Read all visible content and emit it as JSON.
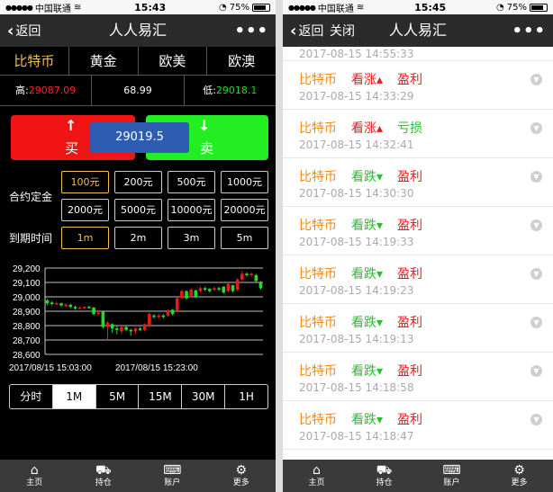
{
  "left": {
    "status": {
      "carrier": "中国联通",
      "time": "15:43",
      "battery": "75%"
    },
    "nav": {
      "back_label": "返回",
      "title": "人人易汇",
      "more": "•••"
    },
    "categories": [
      {
        "label": "比特币",
        "active": true
      },
      {
        "label": "黄金",
        "active": false
      },
      {
        "label": "欧美",
        "active": false
      },
      {
        "label": "欧澳",
        "active": false
      }
    ],
    "prices": {
      "high_label": "高:",
      "high_value": "29087.09",
      "change": "68.99",
      "low_label": "低:",
      "low_value": "29018.1"
    },
    "trade": {
      "buy_label": "买",
      "sell_label": "卖",
      "current_price": "29019.5"
    },
    "deposit": {
      "label": "合约定金",
      "options": [
        "100元",
        "200元",
        "500元",
        "1000元",
        "2000元",
        "5000元",
        "10000元",
        "20000元"
      ],
      "selected": "100元"
    },
    "expiry": {
      "label": "到期时间",
      "options": [
        "1m",
        "2m",
        "3m",
        "5m"
      ],
      "selected": "1m"
    },
    "periods": {
      "options": [
        "分时",
        "1M",
        "5M",
        "15M",
        "30M",
        "1H"
      ],
      "selected": "1M"
    },
    "tabbar": [
      {
        "label": "主页",
        "icon": "home-icon"
      },
      {
        "label": "持仓",
        "icon": "cart-icon"
      },
      {
        "label": "账户",
        "icon": "inbox-icon"
      },
      {
        "label": "更多",
        "icon": "gear-icon"
      }
    ]
  },
  "chart_data": {
    "type": "candlestick",
    "y_ticks": [
      "29,200",
      "29,100",
      "29,000",
      "28,900",
      "28,800",
      "28,700",
      "28,600"
    ],
    "ylim": [
      28600,
      29200
    ],
    "x_ticks": [
      "2017/08/15 15:03:00",
      "2017/08/15 15:23:00"
    ],
    "candles": [
      {
        "o": 28975,
        "c": 28955,
        "h": 28985,
        "l": 28940
      },
      {
        "o": 28960,
        "c": 28950,
        "h": 28970,
        "l": 28940
      },
      {
        "o": 28950,
        "c": 28955,
        "h": 28965,
        "l": 28945
      },
      {
        "o": 28955,
        "c": 28940,
        "h": 28960,
        "l": 28930
      },
      {
        "o": 28940,
        "c": 28945,
        "h": 28955,
        "l": 28930
      },
      {
        "o": 28945,
        "c": 28930,
        "h": 28950,
        "l": 28920
      },
      {
        "o": 28930,
        "c": 28920,
        "h": 28940,
        "l": 28910
      },
      {
        "o": 28920,
        "c": 28925,
        "h": 28935,
        "l": 28915
      },
      {
        "o": 28925,
        "c": 28930,
        "h": 28935,
        "l": 28915
      },
      {
        "o": 28930,
        "c": 28925,
        "h": 28940,
        "l": 28920
      },
      {
        "o": 28925,
        "c": 28880,
        "h": 28930,
        "l": 28870
      },
      {
        "o": 28880,
        "c": 28890,
        "h": 28900,
        "l": 28870
      },
      {
        "o": 28900,
        "c": 28790,
        "h": 28905,
        "l": 28780
      },
      {
        "o": 28790,
        "c": 28820,
        "h": 28830,
        "l": 28700
      },
      {
        "o": 28810,
        "c": 28780,
        "h": 28815,
        "l": 28750
      },
      {
        "o": 28780,
        "c": 28770,
        "h": 28795,
        "l": 28740
      },
      {
        "o": 28760,
        "c": 28790,
        "h": 28800,
        "l": 28740
      },
      {
        "o": 28790,
        "c": 28770,
        "h": 28800,
        "l": 28760
      },
      {
        "o": 28770,
        "c": 28760,
        "h": 28780,
        "l": 28730
      },
      {
        "o": 28760,
        "c": 28780,
        "h": 28790,
        "l": 28740
      },
      {
        "o": 28780,
        "c": 28770,
        "h": 28790,
        "l": 28760
      },
      {
        "o": 28770,
        "c": 28810,
        "h": 28815,
        "l": 28760
      },
      {
        "o": 28800,
        "c": 28880,
        "h": 28890,
        "l": 28790
      },
      {
        "o": 28870,
        "c": 28860,
        "h": 28880,
        "l": 28850
      },
      {
        "o": 28860,
        "c": 28870,
        "h": 28880,
        "l": 28850
      },
      {
        "o": 28870,
        "c": 28860,
        "h": 28880,
        "l": 28850
      },
      {
        "o": 28870,
        "c": 28900,
        "h": 28910,
        "l": 28860
      },
      {
        "o": 28910,
        "c": 28880,
        "h": 28915,
        "l": 28870
      },
      {
        "o": 28900,
        "c": 28990,
        "h": 28995,
        "l": 28890
      },
      {
        "o": 28990,
        "c": 29040,
        "h": 29050,
        "l": 28985
      },
      {
        "o": 29040,
        "c": 28990,
        "h": 29045,
        "l": 28980
      },
      {
        "o": 29000,
        "c": 29050,
        "h": 29060,
        "l": 28995
      },
      {
        "o": 29045,
        "c": 29000,
        "h": 29050,
        "l": 28990
      },
      {
        "o": 29040,
        "c": 29060,
        "h": 29070,
        "l": 29030
      },
      {
        "o": 29060,
        "c": 29050,
        "h": 29070,
        "l": 29040
      },
      {
        "o": 29055,
        "c": 29040,
        "h": 29060,
        "l": 29030
      },
      {
        "o": 29050,
        "c": 29060,
        "h": 29070,
        "l": 29040
      },
      {
        "o": 29060,
        "c": 29050,
        "h": 29070,
        "l": 29040
      },
      {
        "o": 29070,
        "c": 29030,
        "h": 29075,
        "l": 29020
      },
      {
        "o": 29040,
        "c": 29090,
        "h": 29100,
        "l": 29030
      },
      {
        "o": 29080,
        "c": 29040,
        "h": 29085,
        "l": 29030
      },
      {
        "o": 29050,
        "c": 29120,
        "h": 29130,
        "l": 29040
      },
      {
        "o": 29120,
        "c": 29160,
        "h": 29180,
        "l": 29110
      },
      {
        "o": 29160,
        "c": 29150,
        "h": 29170,
        "l": 29140
      },
      {
        "o": 29150,
        "c": 29160,
        "h": 29170,
        "l": 29140
      },
      {
        "o": 29150,
        "c": 29110,
        "h": 29160,
        "l": 29100
      },
      {
        "o": 29100,
        "c": 29060,
        "h": 29110,
        "l": 29050
      }
    ],
    "colors": {
      "up": "#e81b1b",
      "down": "#22dd22",
      "grid": "#ffffff"
    }
  },
  "right": {
    "status": {
      "carrier": "中国联通",
      "time": "15:45",
      "battery": "75%"
    },
    "nav": {
      "back_label": "返回",
      "close_label": "关闭",
      "title": "人人易汇",
      "more": "•••"
    },
    "top_timestamp": "2017-08-15 14:55:33",
    "orders": [
      {
        "symbol": "比特币",
        "direction": "看涨",
        "dir_type": "up",
        "result": "盈利",
        "result_type": "profit",
        "time": "2017-08-15 14:33:29"
      },
      {
        "symbol": "比特币",
        "direction": "看涨",
        "dir_type": "up",
        "result": "亏损",
        "result_type": "loss",
        "time": "2017-08-15 14:32:41"
      },
      {
        "symbol": "比特币",
        "direction": "看跌",
        "dir_type": "down",
        "result": "盈利",
        "result_type": "profit",
        "time": "2017-08-15 14:30:30"
      },
      {
        "symbol": "比特币",
        "direction": "看跌",
        "dir_type": "down",
        "result": "盈利",
        "result_type": "profit",
        "time": "2017-08-15 14:19:33"
      },
      {
        "symbol": "比特币",
        "direction": "看跌",
        "dir_type": "down",
        "result": "盈利",
        "result_type": "profit",
        "time": "2017-08-15 14:19:23"
      },
      {
        "symbol": "比特币",
        "direction": "看跌",
        "dir_type": "down",
        "result": "盈利",
        "result_type": "profit",
        "time": "2017-08-15 14:19:13"
      },
      {
        "symbol": "比特币",
        "direction": "看跌",
        "dir_type": "down",
        "result": "盈利",
        "result_type": "profit",
        "time": "2017-08-15 14:18:58"
      },
      {
        "symbol": "比特币",
        "direction": "看跌",
        "dir_type": "down",
        "result": "盈利",
        "result_type": "profit",
        "time": "2017-08-15 14:18:47"
      }
    ],
    "tabbar": [
      {
        "label": "主页",
        "icon": "home-icon"
      },
      {
        "label": "持仓",
        "icon": "cart-icon"
      },
      {
        "label": "账户",
        "icon": "inbox-icon"
      },
      {
        "label": "更多",
        "icon": "gear-icon"
      }
    ]
  }
}
